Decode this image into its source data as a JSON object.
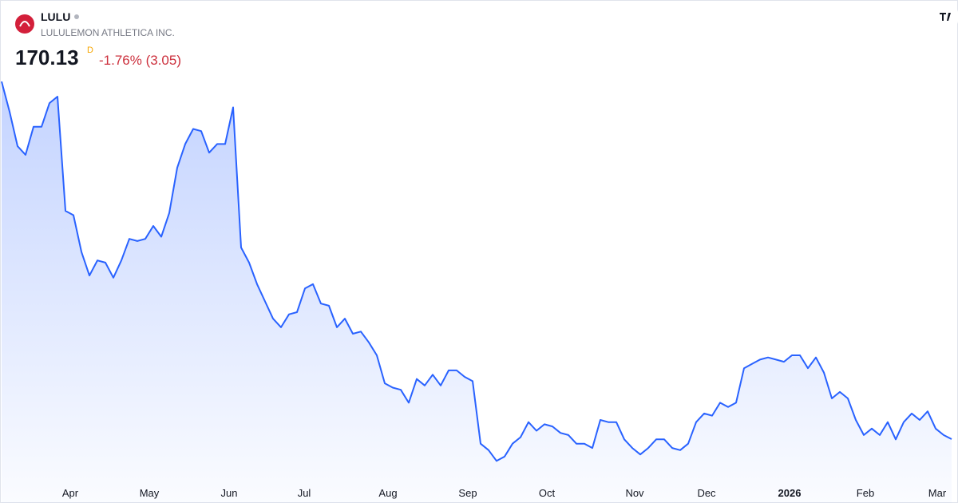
{
  "chart_data": {
    "type": "area",
    "symbol": "LULU",
    "name": "LULULEMON ATHLETICA INC.",
    "price": 170.13,
    "interval": "D",
    "change": "-1.76% (3.05)",
    "series": [
      {
        "color": "#2962ff",
        "values": [
          336,
          322,
          306,
          302,
          315,
          315,
          326,
          329,
          276,
          274,
          257,
          246,
          253,
          252,
          245,
          253,
          263,
          262,
          263,
          269,
          264,
          275,
          296,
          307,
          314,
          313,
          303,
          307,
          307,
          324,
          259,
          252,
          242,
          234,
          226,
          222,
          228,
          229,
          240,
          242,
          233,
          232,
          222,
          226,
          219,
          220,
          215,
          209,
          196,
          194,
          193,
          187,
          198,
          195,
          200,
          195,
          202,
          202,
          199,
          197,
          168,
          165,
          160,
          162,
          168,
          171,
          178,
          174,
          177,
          176,
          173,
          172,
          168,
          168,
          166,
          179,
          178,
          178,
          170,
          166,
          163,
          166,
          170,
          170,
          166,
          165,
          168,
          178,
          182,
          181,
          187,
          185,
          187,
          203,
          205,
          207,
          208,
          207,
          206,
          209,
          209,
          203,
          208,
          201,
          189,
          192,
          189,
          179,
          172,
          175,
          172,
          178,
          170,
          178,
          182,
          179,
          183,
          175,
          172,
          170.13
        ]
      }
    ],
    "xlim": [
      0,
      119
    ],
    "ylim": [
      151.6,
      373.8
    ],
    "xticks": [
      {
        "value": 8.6,
        "label": "Apr"
      },
      {
        "value": 18.5,
        "label": "May"
      },
      {
        "value": 28.5,
        "label": "Jun"
      },
      {
        "value": 37.9,
        "label": "Jul"
      },
      {
        "value": 48.4,
        "label": "Aug"
      },
      {
        "value": 58.4,
        "label": "Sep"
      },
      {
        "value": 68.3,
        "label": "Oct"
      },
      {
        "value": 79.3,
        "label": "Nov"
      },
      {
        "value": 88.3,
        "label": "Dec"
      },
      {
        "value": 98.7,
        "label": "2026"
      },
      {
        "value": 108.2,
        "label": "Feb"
      },
      {
        "value": 117.2,
        "label": "Mar"
      }
    ]
  }
}
